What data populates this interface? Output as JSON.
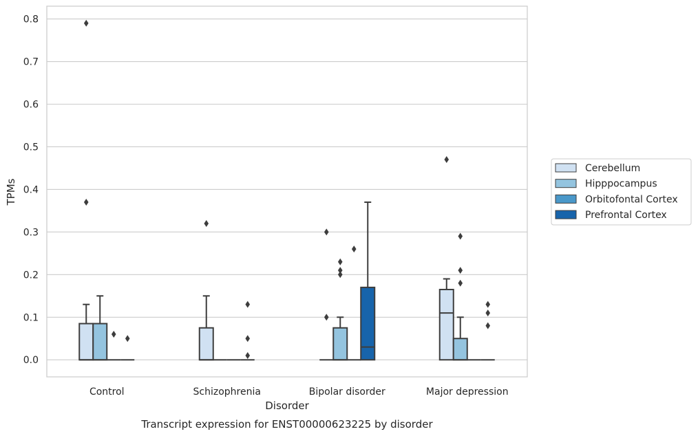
{
  "caption": "Transcript expression for ENST00000623225 by disorder",
  "chart_data": {
    "type": "boxplot",
    "xlabel": "Disorder",
    "ylabel": "TPMs",
    "categories": [
      "Control",
      "Schizophrenia",
      "Bipolar disorder",
      "Major depression"
    ],
    "ylim": [
      -0.04,
      0.83
    ],
    "yticks": [
      0.0,
      0.1,
      0.2,
      0.3,
      0.4,
      0.5,
      0.6,
      0.7,
      0.8
    ],
    "ytick_labels": [
      "0.0",
      "0.1",
      "0.2",
      "0.3",
      "0.4",
      "0.5",
      "0.6",
      "0.7",
      "0.8"
    ],
    "grid": "horizontal",
    "legend_position": "right",
    "series": [
      {
        "name": "Cerebellum",
        "color": "#d0e1f2",
        "boxes": [
          {
            "q1": 0.0,
            "median": 0.0,
            "q3": 0.085,
            "whislo": 0.0,
            "whishi": 0.13,
            "fliers": [
              0.79,
              0.37
            ]
          },
          {
            "q1": 0.0,
            "median": 0.0,
            "q3": 0.075,
            "whislo": 0.0,
            "whishi": 0.15,
            "fliers": [
              0.32
            ]
          },
          {
            "q1": 0.0,
            "median": 0.0,
            "q3": 0.0,
            "whislo": 0.0,
            "whishi": 0.0,
            "fliers": [
              0.3,
              0.1
            ]
          },
          {
            "q1": 0.0,
            "median": 0.11,
            "q3": 0.165,
            "whislo": 0.0,
            "whishi": 0.19,
            "fliers": [
              0.47
            ]
          }
        ]
      },
      {
        "name": "Hipppocampus",
        "color": "#94c4df",
        "boxes": [
          {
            "q1": 0.0,
            "median": 0.0,
            "q3": 0.085,
            "whislo": 0.0,
            "whishi": 0.15,
            "fliers": []
          },
          {
            "q1": 0.0,
            "median": 0.0,
            "q3": 0.0,
            "whislo": 0.0,
            "whishi": 0.0,
            "fliers": []
          },
          {
            "q1": 0.0,
            "median": 0.0,
            "q3": 0.075,
            "whislo": 0.0,
            "whishi": 0.1,
            "fliers": [
              0.23,
              0.21,
              0.2
            ]
          },
          {
            "q1": 0.0,
            "median": 0.0,
            "q3": 0.05,
            "whislo": 0.0,
            "whishi": 0.1,
            "fliers": [
              0.29,
              0.21,
              0.18
            ]
          }
        ]
      },
      {
        "name": "Orbitofontal Cortex",
        "color": "#4a98c9",
        "boxes": [
          {
            "q1": 0.0,
            "median": 0.0,
            "q3": 0.0,
            "whislo": 0.0,
            "whishi": 0.0,
            "fliers": [
              0.06
            ]
          },
          {
            "q1": 0.0,
            "median": 0.0,
            "q3": 0.0,
            "whislo": 0.0,
            "whishi": 0.0,
            "fliers": []
          },
          {
            "q1": 0.0,
            "median": 0.0,
            "q3": 0.0,
            "whislo": 0.0,
            "whishi": 0.0,
            "fliers": [
              0.26
            ]
          },
          {
            "q1": 0.0,
            "median": 0.0,
            "q3": 0.0,
            "whislo": 0.0,
            "whishi": 0.0,
            "fliers": []
          }
        ]
      },
      {
        "name": "Prefrontal Cortex",
        "color": "#1764ab",
        "boxes": [
          {
            "q1": 0.0,
            "median": 0.0,
            "q3": 0.0,
            "whislo": 0.0,
            "whishi": 0.0,
            "fliers": [
              0.05
            ]
          },
          {
            "q1": 0.0,
            "median": 0.0,
            "q3": 0.0,
            "whislo": 0.0,
            "whishi": 0.0,
            "fliers": [
              0.13,
              0.05,
              0.01
            ]
          },
          {
            "q1": 0.0,
            "median": 0.03,
            "q3": 0.17,
            "whislo": 0.0,
            "whishi": 0.37,
            "fliers": []
          },
          {
            "q1": 0.0,
            "median": 0.0,
            "q3": 0.0,
            "whislo": 0.0,
            "whishi": 0.0,
            "fliers": [
              0.13,
              0.11,
              0.08
            ]
          }
        ]
      }
    ]
  }
}
